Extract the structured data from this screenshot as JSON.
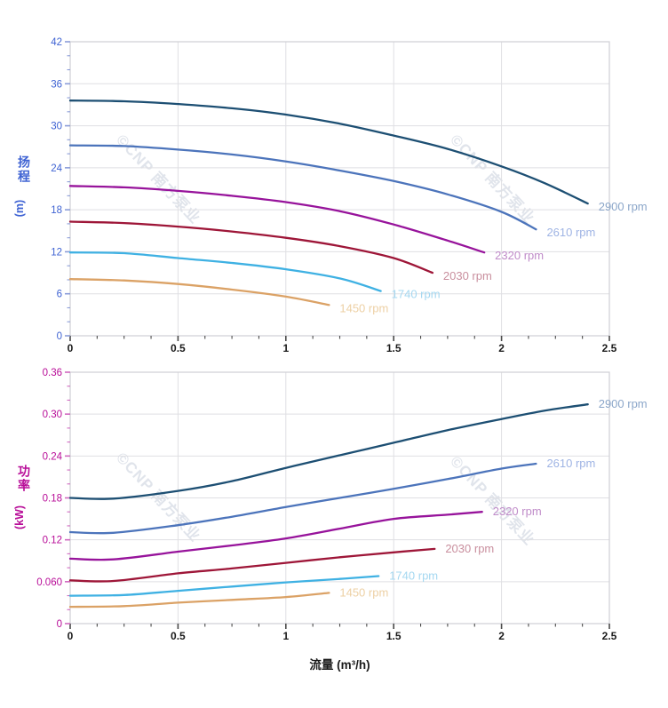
{
  "watermark": {
    "text": "©CNP 南方泵业",
    "color": "#ccd2dd"
  },
  "x_axis_shared": {
    "title": "流量 (m³/h)",
    "tick_labels": [
      "0",
      "0.5",
      "1",
      "1.5",
      "2",
      "2.5"
    ],
    "tick_values": [
      0,
      0.5,
      1,
      1.5,
      2,
      2.5
    ],
    "minor_step": 0.125,
    "label_color": "#1a1a1a",
    "tick_color": "#4a4a4a"
  },
  "chart_data": [
    {
      "type": "line",
      "title": "",
      "xlabel": "流量 (m³/h)",
      "ylabel": "扬程 (m)",
      "ylabel_chars": [
        "扬",
        "程"
      ],
      "ylabel_unit": "(m)",
      "axis_color": "#3f63d3",
      "tick_mark_color": "#8b9cd8",
      "xlim": [
        0,
        2.5
      ],
      "ylim": [
        0,
        42
      ],
      "y_tick_labels": [
        "0",
        "6",
        "12",
        "18",
        "24",
        "30",
        "36",
        "42"
      ],
      "y_tick_values": [
        0,
        6,
        12,
        18,
        24,
        30,
        36,
        42
      ],
      "y_minor_step": 2,
      "grid": true,
      "legend_position": "end-of-line",
      "series": [
        {
          "name": "2900 rpm",
          "color": "#1d4f73",
          "label_color": "#8ba6c9",
          "x": [
            0,
            0.25,
            0.5,
            0.75,
            1.0,
            1.25,
            1.5,
            1.75,
            2.0,
            2.2,
            2.4
          ],
          "y": [
            33.6,
            33.5,
            33.1,
            32.5,
            31.6,
            30.3,
            28.6,
            26.7,
            24.2,
            21.8,
            18.9
          ]
        },
        {
          "name": "2610 rpm",
          "color": "#4c74bb",
          "label_color": "#9fb4e4",
          "x": [
            0,
            0.25,
            0.5,
            0.75,
            1.0,
            1.25,
            1.5,
            1.75,
            2.0,
            2.16
          ],
          "y": [
            27.2,
            27.1,
            26.6,
            25.9,
            24.9,
            23.6,
            22.1,
            20.2,
            17.7,
            15.2
          ]
        },
        {
          "name": "2320 rpm",
          "color": "#97139b",
          "label_color": "#c08cc9",
          "x": [
            0,
            0.25,
            0.5,
            0.75,
            1.0,
            1.25,
            1.5,
            1.75,
            1.92
          ],
          "y": [
            21.4,
            21.2,
            20.7,
            20.0,
            19.1,
            17.8,
            15.9,
            13.6,
            11.9
          ]
        },
        {
          "name": "2030 rpm",
          "color": "#9e1638",
          "label_color": "#c98f9e",
          "x": [
            0,
            0.25,
            0.5,
            0.75,
            1.0,
            1.25,
            1.5,
            1.68
          ],
          "y": [
            16.3,
            16.1,
            15.6,
            14.9,
            14.0,
            12.8,
            11.1,
            9.0
          ]
        },
        {
          "name": "1740 rpm",
          "color": "#3fb1e3",
          "label_color": "#a5d8f1",
          "x": [
            0,
            0.25,
            0.5,
            0.75,
            1.0,
            1.25,
            1.44
          ],
          "y": [
            11.9,
            11.8,
            11.1,
            10.4,
            9.5,
            8.2,
            6.4
          ]
        },
        {
          "name": "1450 rpm",
          "color": "#dba266",
          "label_color": "#edd0a4",
          "x": [
            0,
            0.25,
            0.5,
            0.75,
            1.0,
            1.2
          ],
          "y": [
            8.1,
            7.9,
            7.4,
            6.6,
            5.6,
            4.4
          ]
        }
      ]
    },
    {
      "type": "line",
      "title": "",
      "xlabel": "流量 (m³/h)",
      "ylabel": "功率 (kW)",
      "ylabel_chars": [
        "功",
        "率"
      ],
      "ylabel_unit": "(kW)",
      "axis_color": "#b80d98",
      "tick_mark_color": "#d069c0",
      "xlim": [
        0,
        2.5
      ],
      "ylim": [
        0,
        0.36
      ],
      "y_tick_labels": [
        "0",
        "0.060",
        "0.12",
        "0.18",
        "0.24",
        "0.30",
        "0.36"
      ],
      "y_tick_values": [
        0,
        0.06,
        0.12,
        0.18,
        0.24,
        0.3,
        0.36
      ],
      "y_minor_step": 0.02,
      "grid": true,
      "legend_position": "end-of-line",
      "series": [
        {
          "name": "2900 rpm",
          "color": "#1d4f73",
          "label_color": "#8ba6c9",
          "x": [
            0,
            0.2,
            0.5,
            0.75,
            1.0,
            1.25,
            1.5,
            1.75,
            2.0,
            2.2,
            2.4
          ],
          "y": [
            0.18,
            0.179,
            0.19,
            0.204,
            0.223,
            0.241,
            0.259,
            0.277,
            0.293,
            0.305,
            0.314
          ]
        },
        {
          "name": "2610 rpm",
          "color": "#4c74bb",
          "label_color": "#9fb4e4",
          "x": [
            0,
            0.2,
            0.5,
            0.75,
            1.0,
            1.25,
            1.5,
            1.75,
            2.0,
            2.16
          ],
          "y": [
            0.131,
            0.13,
            0.141,
            0.153,
            0.167,
            0.18,
            0.193,
            0.207,
            0.222,
            0.229
          ]
        },
        {
          "name": "2320 rpm",
          "color": "#97139b",
          "label_color": "#c08cc9",
          "x": [
            0,
            0.2,
            0.5,
            0.75,
            1.0,
            1.25,
            1.5,
            1.75,
            1.91
          ],
          "y": [
            0.093,
            0.092,
            0.103,
            0.112,
            0.122,
            0.136,
            0.15,
            0.156,
            0.16
          ]
        },
        {
          "name": "2030 rpm",
          "color": "#9e1638",
          "label_color": "#c98f9e",
          "x": [
            0,
            0.2,
            0.5,
            0.75,
            1.0,
            1.25,
            1.5,
            1.69
          ],
          "y": [
            0.062,
            0.061,
            0.072,
            0.079,
            0.087,
            0.095,
            0.102,
            0.107
          ]
        },
        {
          "name": "1740 rpm",
          "color": "#3fb1e3",
          "label_color": "#a5d8f1",
          "x": [
            0,
            0.25,
            0.5,
            0.75,
            1.0,
            1.25,
            1.43
          ],
          "y": [
            0.04,
            0.041,
            0.047,
            0.053,
            0.059,
            0.064,
            0.068
          ]
        },
        {
          "name": "1450 rpm",
          "color": "#dba266",
          "label_color": "#edd0a4",
          "x": [
            0,
            0.25,
            0.5,
            0.75,
            1.0,
            1.2
          ],
          "y": [
            0.024,
            0.025,
            0.03,
            0.034,
            0.038,
            0.044
          ]
        }
      ]
    }
  ]
}
